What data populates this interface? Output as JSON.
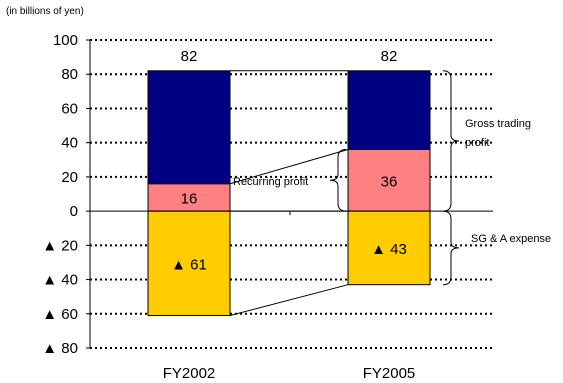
{
  "chart_data": {
    "type": "bar",
    "stacked": true,
    "unit_note": "(in billions of yen)",
    "categories": [
      "FY2002",
      "FY2005"
    ],
    "ylim": [
      -80,
      100
    ],
    "y_ticks": [
      {
        "value": 100,
        "label": "100"
      },
      {
        "value": 80,
        "label": "80"
      },
      {
        "value": 60,
        "label": "60"
      },
      {
        "value": 40,
        "label": "40"
      },
      {
        "value": 20,
        "label": "20"
      },
      {
        "value": 0,
        "label": "0"
      },
      {
        "value": -20,
        "label": "▲ 20"
      },
      {
        "value": -40,
        "label": "▲ 40"
      },
      {
        "value": -60,
        "label": "▲ 60"
      },
      {
        "value": -80,
        "label": "▲ 80"
      }
    ],
    "grid": "dotted horizontal",
    "totals": [
      {
        "value": 82,
        "label": "82"
      },
      {
        "value": 82,
        "label": "82"
      }
    ],
    "series": [
      {
        "color": "#000080",
        "values": [
          66,
          46
        ],
        "labels": [
          "",
          ""
        ]
      },
      {
        "color": "#ff8080",
        "values": [
          16,
          36
        ],
        "labels": [
          "16",
          "36"
        ]
      },
      {
        "color": "#ffcc00",
        "values": [
          -61,
          -43
        ],
        "labels": [
          "▲ 61",
          "▲ 43"
        ]
      }
    ],
    "annotations": {
      "recurring_profit": "Recurring profit",
      "gross_trading_profit": "Gross trading profit",
      "sga_expense": "SG & A expense"
    }
  }
}
